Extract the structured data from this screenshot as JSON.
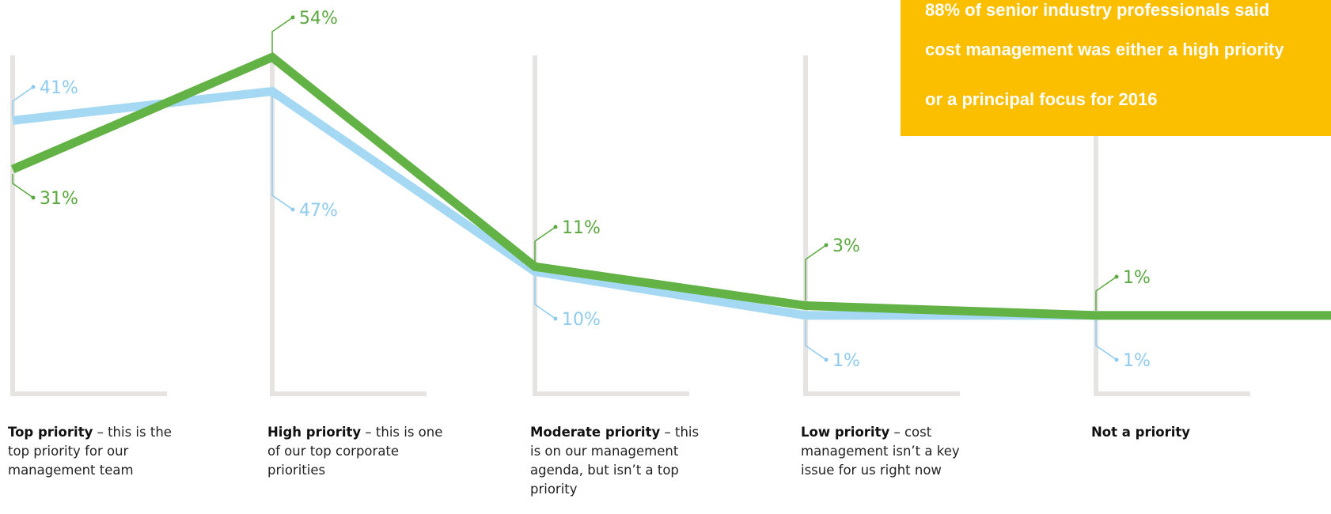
{
  "callout": {
    "lines": [
      "88% of senior industry professionals said",
      "cost management was either a high priority",
      "or a principal focus for 2016"
    ],
    "background_color": "#fbbf00",
    "text_color": "#ffffff"
  },
  "chart_data": {
    "type": "line",
    "categories": [
      {
        "bold": "Top priority",
        "rest": " – this is the top priority for our management team"
      },
      {
        "bold": "High priority",
        "rest": " – this is one of our top corporate priorities"
      },
      {
        "bold": "Moderate priority",
        "rest": " – this is on our management agenda, but isn’t a top priority"
      },
      {
        "bold": "Low priority",
        "rest": " – cost management isn’t a key issue for us right now"
      },
      {
        "bold": "Not a priority",
        "rest": ""
      }
    ],
    "series": [
      {
        "values": [
          31,
          54,
          11,
          3,
          1
        ],
        "labels": [
          "31%",
          "54%",
          "11%",
          "3%",
          "1%"
        ],
        "color": "#62b246"
      },
      {
        "values": [
          41,
          47,
          10,
          1,
          1
        ],
        "labels": [
          "41%",
          "47%",
          "10%",
          "1%",
          "1%"
        ],
        "color": "#a5d8f3"
      }
    ],
    "ylim": [
      0,
      60
    ],
    "grid": false,
    "legend": "none"
  }
}
